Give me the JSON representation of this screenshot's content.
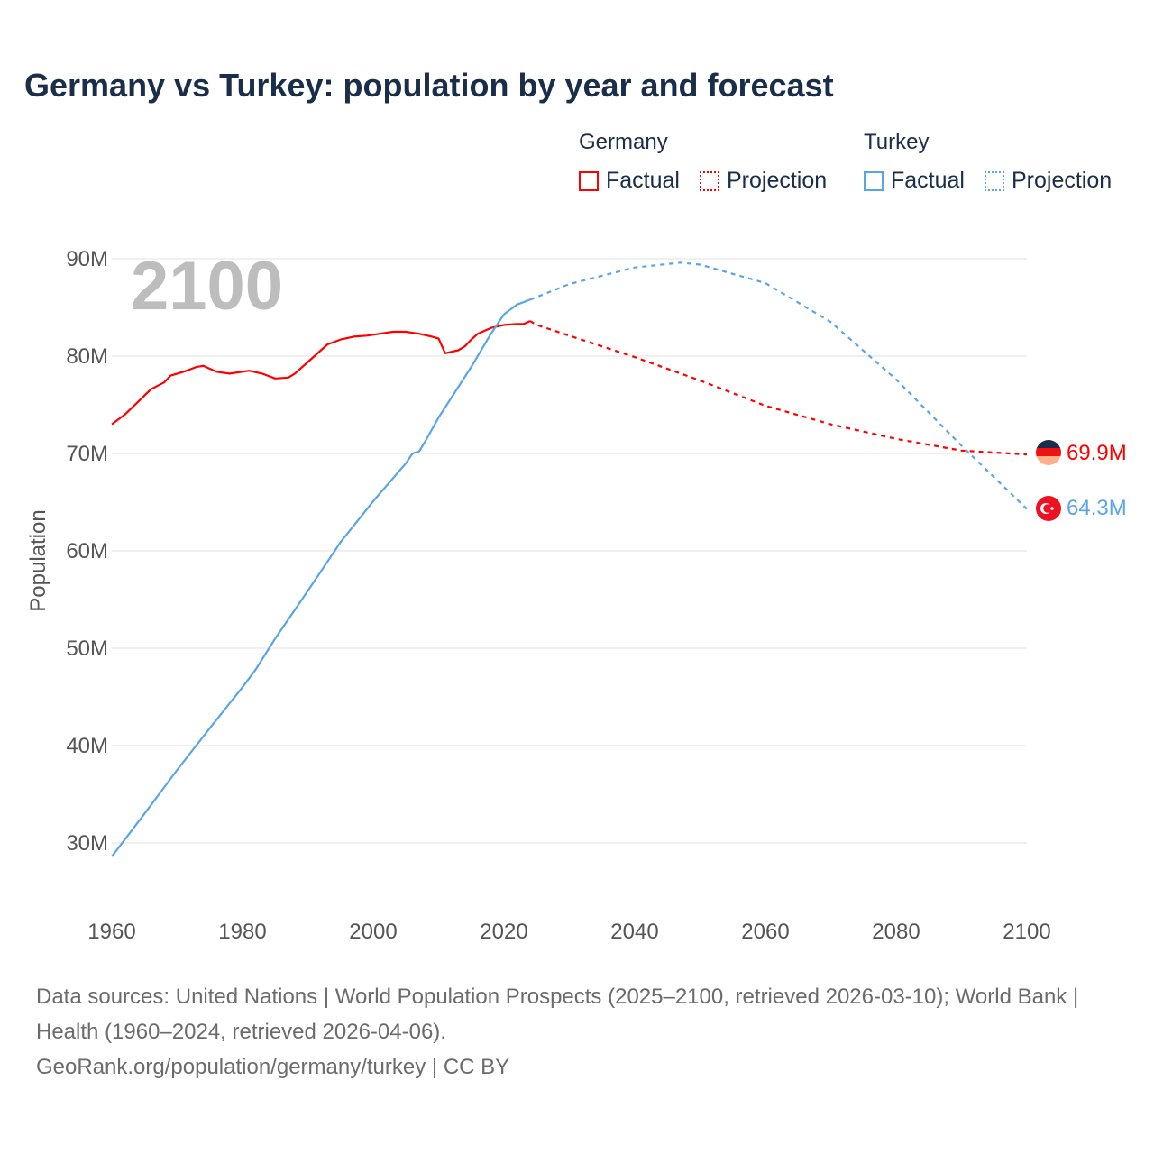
{
  "title": "Germany vs Turkey: population by year and forecast",
  "legend": {
    "groups": [
      {
        "name": "Germany",
        "color": "#ff0000",
        "factual": "Factual",
        "projection": "Projection"
      },
      {
        "name": "Turkey",
        "color": "#5aa5e8",
        "factual": "Factual",
        "projection": "Projection"
      }
    ]
  },
  "year_overlay": "2100",
  "end_labels": {
    "germany": "69.9M",
    "turkey": "64.3M"
  },
  "footer": {
    "sources": "Data sources: United Nations | World Population Prospects (2025–2100, retrieved 2026-03-10); World Bank | Health (1960–2024, retrieved 2026-04-06).",
    "credit": "GeoRank.org/population/germany/turkey | CC BY"
  },
  "chart_data": {
    "type": "line",
    "title": "Germany vs Turkey: population by year and forecast",
    "xlabel": "",
    "ylabel": "Population",
    "xlim": [
      1960,
      2100
    ],
    "ylim": [
      30,
      90
    ],
    "y_unit": "M",
    "x_ticks": [
      "1960",
      "1980",
      "2000",
      "2020",
      "2040",
      "2060",
      "2080",
      "2100"
    ],
    "y_ticks": [
      "30M",
      "40M",
      "50M",
      "60M",
      "70M",
      "80M",
      "90M"
    ],
    "grid": true,
    "legend_position": "top-right",
    "series": [
      {
        "name": "Germany Factual",
        "color": "#ff0000",
        "dashed": false,
        "x": [
          1960,
          1962,
          1964,
          1966,
          1968,
          1969,
          1971,
          1973,
          1974,
          1976,
          1978,
          1980,
          1981,
          1983,
          1985,
          1987,
          1988,
          1990,
          1992,
          1993,
          1995,
          1997,
          1999,
          2001,
          2003,
          2005,
          2007,
          2009,
          2010,
          2011,
          2013,
          2014,
          2015,
          2016,
          2018,
          2020,
          2022,
          2023,
          2024
        ],
        "y": [
          73.0,
          74.0,
          75.3,
          76.6,
          77.3,
          78.0,
          78.4,
          78.9,
          79.0,
          78.4,
          78.2,
          78.4,
          78.5,
          78.2,
          77.7,
          77.8,
          78.2,
          79.4,
          80.6,
          81.2,
          81.7,
          82.0,
          82.1,
          82.3,
          82.5,
          82.5,
          82.3,
          82.0,
          81.8,
          80.3,
          80.6,
          81.0,
          81.7,
          82.3,
          82.9,
          83.2,
          83.3,
          83.3,
          83.6
        ]
      },
      {
        "name": "Germany Projection",
        "color": "#ff0000",
        "dashed": true,
        "x": [
          2024,
          2025,
          2030,
          2040,
          2050,
          2060,
          2070,
          2080,
          2090,
          2100
        ],
        "y": [
          83.6,
          83.2,
          82.1,
          79.9,
          77.5,
          74.9,
          73.0,
          71.5,
          70.3,
          69.9
        ]
      },
      {
        "name": "Turkey Factual",
        "color": "#5aa5e8",
        "dashed": false,
        "x": [
          1960,
          1965,
          1970,
          1975,
          1980,
          1982,
          1985,
          1990,
          1995,
          2000,
          2005,
          2006,
          2007,
          2008,
          2010,
          2015,
          2018,
          2020,
          2022,
          2024
        ],
        "y": [
          28.6,
          33.0,
          37.5,
          41.8,
          46.0,
          47.8,
          51.0,
          55.9,
          60.9,
          65.1,
          69.0,
          70.0,
          70.2,
          71.3,
          73.7,
          78.9,
          82.3,
          84.3,
          85.3,
          85.8
        ]
      },
      {
        "name": "Turkey Projection",
        "color": "#5aa5e8",
        "dashed": true,
        "x": [
          2024,
          2030,
          2040,
          2047,
          2050,
          2060,
          2070,
          2080,
          2090,
          2100
        ],
        "y": [
          85.8,
          87.4,
          89.1,
          89.6,
          89.4,
          87.5,
          83.5,
          77.6,
          70.8,
          64.3
        ]
      }
    ]
  }
}
